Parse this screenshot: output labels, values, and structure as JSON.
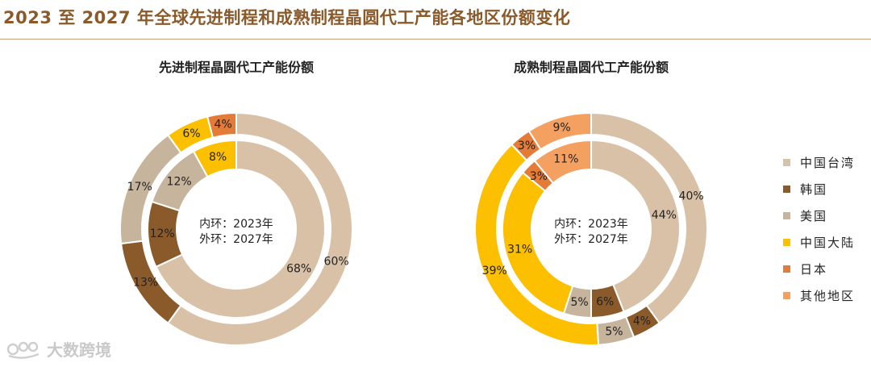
{
  "page": {
    "title": "2023 至 2027 年全球先进制程和成熟制程晶圆代工产能各地区份额变化"
  },
  "colors": {
    "中国台湾": "#d9c1a7",
    "韩国": "#8b5a2b",
    "美国": "#c6b49c",
    "中国大陆": "#fcc000",
    "日本": "#e47b36",
    "其他地区": "#f4a060"
  },
  "chart_data": [
    {
      "type": "pie",
      "title": "先进制程晶圆代工产能份额",
      "center_label": [
        "内环：2023年",
        "外环：2027年"
      ],
      "categories": [
        "中国台湾",
        "韩国",
        "美国",
        "中国大陆",
        "日本",
        "其他地区"
      ],
      "series": [
        {
          "name": "内环：2023年",
          "ring": "inner",
          "values": [
            68,
            12,
            12,
            8,
            0,
            0
          ],
          "labels": [
            "68%",
            "12%",
            "12%",
            "8%",
            "",
            ""
          ]
        },
        {
          "name": "外环：2027年",
          "ring": "outer",
          "values": [
            60,
            13,
            17,
            6,
            4,
            0
          ],
          "labels": [
            "60%",
            "13%",
            "17%",
            "6%",
            "4%",
            ""
          ]
        }
      ]
    },
    {
      "type": "pie",
      "title": "成熟制程晶圆代工产能份额",
      "center_label": [
        "内环：2023年",
        "外环：2027年"
      ],
      "categories": [
        "中国台湾",
        "韩国",
        "美国",
        "中国大陆",
        "日本",
        "其他地区"
      ],
      "series": [
        {
          "name": "内环：2023年",
          "ring": "inner",
          "values": [
            44,
            6,
            5,
            31,
            3,
            11
          ],
          "labels": [
            "44%",
            "6%",
            "5%",
            "31%",
            "3%",
            "11%"
          ]
        },
        {
          "name": "外环：2027年",
          "ring": "outer",
          "values": [
            40,
            4,
            5,
            39,
            3,
            9
          ],
          "labels": [
            "40%",
            "4%",
            "5%",
            "39%",
            "3%",
            "9%"
          ]
        }
      ]
    }
  ],
  "legend": {
    "position": "right",
    "items": [
      "中国台湾",
      "韩国",
      "美国",
      "中国大陆",
      "日本",
      "其他地区"
    ]
  },
  "watermark": {
    "text": "大数跨境"
  }
}
